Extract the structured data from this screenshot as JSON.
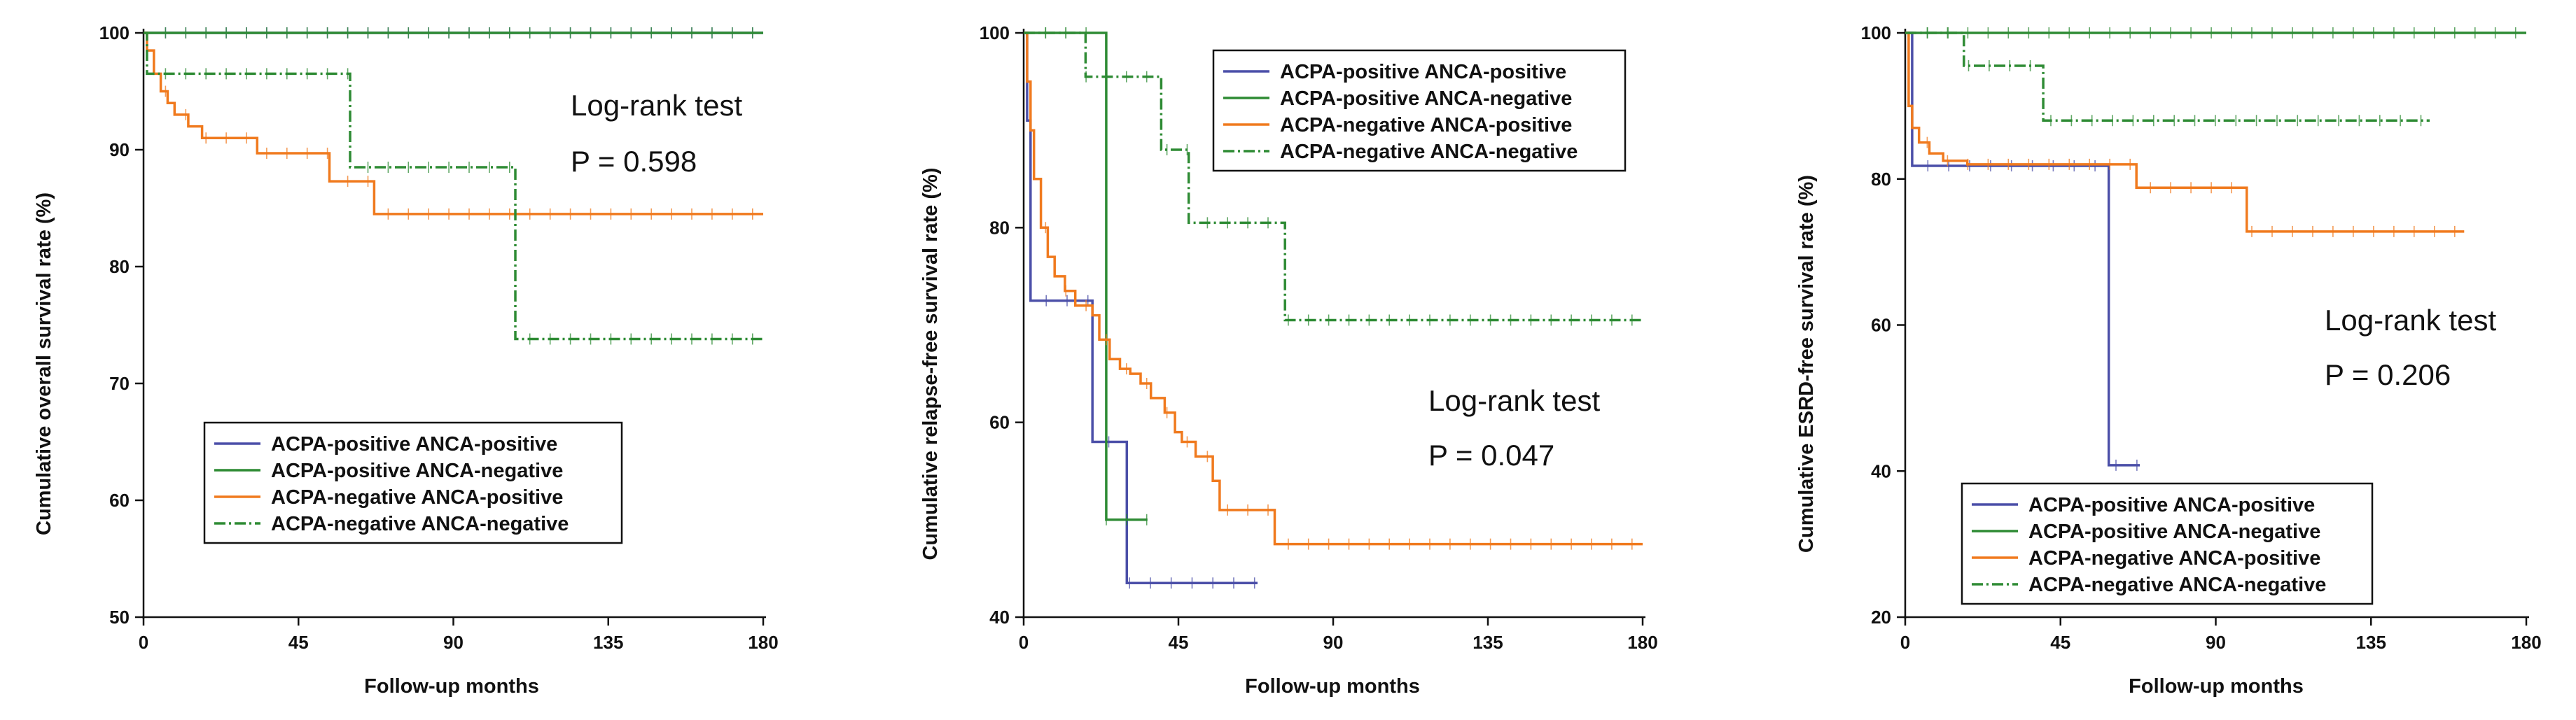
{
  "colors": {
    "ACPA-positive ANCA-positive": "#4b4fa8",
    "ACPA-positive ANCA-negative": "#2e8b34",
    "ACPA-negative ANCA-positive": "#f07a1e",
    "ACPA-negative ANCA-negative": "#2e8b34",
    "axis": "#111111"
  },
  "chart_data": [
    {
      "type": "line",
      "subtype": "kaplan-meier",
      "title": "",
      "xlabel": "Follow-up months",
      "ylabel": "Cumulative overall survival rate (%)",
      "xlim": [
        0,
        180
      ],
      "ylim": [
        50,
        100
      ],
      "xticks": [
        0,
        45,
        90,
        135,
        180
      ],
      "yticks": [
        50,
        60,
        70,
        80,
        90,
        100
      ],
      "grid": false,
      "legend": "bottom-left",
      "annotations": [
        "Log-rank test",
        "P = 0.598"
      ],
      "series": [
        {
          "name": "ACPA-positive ANCA-positive",
          "style": "solid",
          "points": [
            [
              0,
              100
            ],
            [
              180,
              100
            ]
          ]
        },
        {
          "name": "ACPA-positive ANCA-negative",
          "style": "solid",
          "points": [
            [
              0,
              100
            ],
            [
              180,
              100
            ]
          ]
        },
        {
          "name": "ACPA-negative ANCA-positive",
          "style": "solid",
          "points": [
            [
              0,
              100
            ],
            [
              1,
              98.5
            ],
            [
              3,
              96.5
            ],
            [
              5,
              95
            ],
            [
              7,
              94
            ],
            [
              9,
              93
            ],
            [
              13,
              92
            ],
            [
              17,
              91
            ],
            [
              33,
              89.7
            ],
            [
              54,
              87.3
            ],
            [
              67,
              84.5
            ],
            [
              180,
              84.5
            ]
          ]
        },
        {
          "name": "ACPA-negative ANCA-negative",
          "style": "dashdot",
          "points": [
            [
              0,
              100
            ],
            [
              1,
              96.5
            ],
            [
              60,
              88.5
            ],
            [
              108,
              73.8
            ],
            [
              180,
              73.8
            ]
          ]
        }
      ]
    },
    {
      "type": "line",
      "subtype": "kaplan-meier",
      "title": "",
      "xlabel": "Follow-up months",
      "ylabel": "Cumulative relapse-free survival rate (%)",
      "xlim": [
        0,
        180
      ],
      "ylim": [
        40,
        100
      ],
      "xticks": [
        0,
        45,
        90,
        135,
        180
      ],
      "yticks": [
        40,
        60,
        80,
        100
      ],
      "grid": false,
      "legend": "top-center",
      "annotations": [
        "Log-rank test",
        "P = 0.047"
      ],
      "series": [
        {
          "name": "ACPA-positive ANCA-positive",
          "style": "solid",
          "points": [
            [
              0,
              100
            ],
            [
              1,
              91
            ],
            [
              2,
              72.5
            ],
            [
              20,
              58
            ],
            [
              30,
              43.5
            ],
            [
              68,
              43.5
            ]
          ]
        },
        {
          "name": "ACPA-positive ANCA-negative",
          "style": "solid",
          "points": [
            [
              0,
              100
            ],
            [
              24,
              100
            ],
            [
              24,
              50
            ],
            [
              36,
              50
            ]
          ]
        },
        {
          "name": "ACPA-negative ANCA-positive",
          "style": "solid",
          "points": [
            [
              0,
              100
            ],
            [
              1,
              95
            ],
            [
              2,
              90
            ],
            [
              3,
              85
            ],
            [
              5,
              80
            ],
            [
              7,
              77
            ],
            [
              9,
              75
            ],
            [
              12,
              73.5
            ],
            [
              15,
              72
            ],
            [
              20,
              71
            ],
            [
              22,
              68.5
            ],
            [
              25,
              66.5
            ],
            [
              28,
              65.5
            ],
            [
              31,
              65
            ],
            [
              34,
              64
            ],
            [
              37,
              62.5
            ],
            [
              41,
              61
            ],
            [
              44,
              59
            ],
            [
              46,
              58
            ],
            [
              50,
              56.5
            ],
            [
              55,
              54
            ],
            [
              57,
              51
            ],
            [
              73,
              47.5
            ],
            [
              180,
              47.5
            ]
          ]
        },
        {
          "name": "ACPA-negative ANCA-negative",
          "style": "dashdot",
          "points": [
            [
              0,
              100
            ],
            [
              18,
              95.5
            ],
            [
              40,
              88
            ],
            [
              48,
              80.5
            ],
            [
              76,
              70.5
            ],
            [
              180,
              70.5
            ]
          ]
        }
      ]
    },
    {
      "type": "line",
      "subtype": "kaplan-meier",
      "title": "",
      "xlabel": "Follow-up months",
      "ylabel": "Cumulative ESRD-free survival rate (%)",
      "xlim": [
        0,
        180
      ],
      "ylim": [
        20,
        100
      ],
      "xticks": [
        0,
        45,
        90,
        135,
        180
      ],
      "yticks": [
        20,
        40,
        60,
        80,
        100
      ],
      "grid": false,
      "legend": "bottom-left",
      "annotations": [
        "Log-rank test",
        "P = 0.206"
      ],
      "series": [
        {
          "name": "ACPA-positive ANCA-positive",
          "style": "solid",
          "points": [
            [
              0,
              100
            ],
            [
              2,
              81.8
            ],
            [
              59,
              81.8
            ],
            [
              59,
              40.8
            ],
            [
              68,
              40.8
            ]
          ]
        },
        {
          "name": "ACPA-positive ANCA-negative",
          "style": "solid",
          "points": [
            [
              0,
              100
            ],
            [
              180,
              100
            ]
          ]
        },
        {
          "name": "ACPA-negative ANCA-positive",
          "style": "solid",
          "points": [
            [
              0,
              100
            ],
            [
              1,
              90
            ],
            [
              2,
              87
            ],
            [
              4,
              85
            ],
            [
              7,
              83.5
            ],
            [
              11,
              82.5
            ],
            [
              18,
              82
            ],
            [
              67,
              78.8
            ],
            [
              99,
              72.8
            ],
            [
              162,
              72.8
            ]
          ]
        },
        {
          "name": "ACPA-negative ANCA-negative",
          "style": "dashdot",
          "points": [
            [
              0,
              100
            ],
            [
              17,
              95.5
            ],
            [
              40,
              88
            ],
            [
              152,
              88
            ]
          ]
        }
      ]
    }
  ]
}
